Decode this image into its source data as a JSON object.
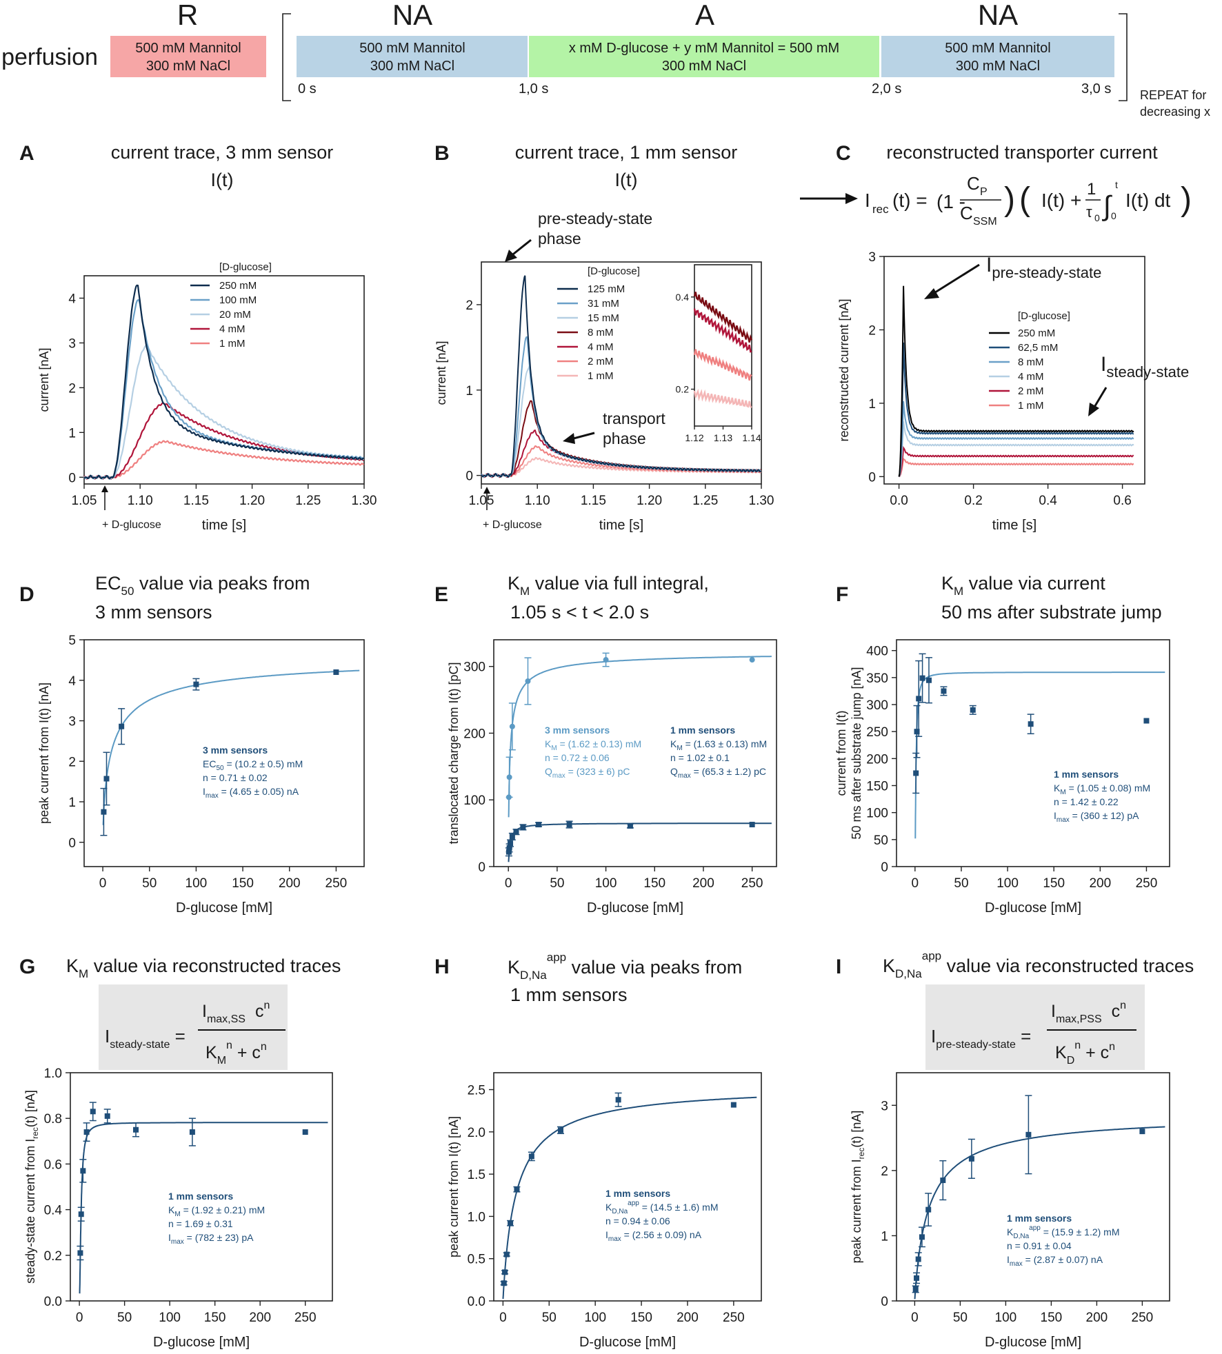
{
  "perfusion": {
    "label": "perfusion",
    "repeat_note": [
      "REPEAT for",
      "decreasing x"
    ],
    "phases": [
      {
        "head": "R",
        "color": "#f6a6a6",
        "lines": [
          "500 mM Mannitol",
          "300 mM NaCl"
        ]
      },
      {
        "head": "NA",
        "color": "#b9d3e5",
        "lines": [
          "500 mM Mannitol",
          "300 mM NaCl"
        ]
      },
      {
        "head": "A",
        "color": "#b4f3a6",
        "lines": [
          "x mM D-glucose + y mM Mannitol = 500 mM",
          "300 mM NaCl"
        ]
      },
      {
        "head": "NA",
        "color": "#b9d3e5",
        "lines": [
          "500 mM Mannitol",
          "300 mM NaCl"
        ]
      }
    ],
    "times": [
      "0 s",
      "1,0 s",
      "2,0 s",
      "3,0 s"
    ]
  },
  "panelA": {
    "letter": "A",
    "title": "current trace, 3 mm sensor",
    "subtitle": "I(t)",
    "marker": "+ D-glucose"
  },
  "panelB": {
    "letter": "B",
    "title": "current trace, 1 mm sensor",
    "subtitle": "I(t)",
    "marker": "+ D-glucose",
    "ann_pre": [
      "pre-steady-state",
      "phase"
    ],
    "ann_trans": [
      "transport",
      "phase"
    ]
  },
  "panelC": {
    "letter": "C",
    "title": "reconstructed transporter current",
    "eq": {
      "i": "I",
      "rec": "rec",
      "t": "(t) =",
      "one_minus": "(1 -",
      "cp": "C",
      "cp_sub": "P",
      "cssm": "C",
      "cssm_sub": "SSM",
      "it": "I(t) +",
      "one": "1",
      "tau": "τ",
      "tau_sub": "0",
      "int_top": "t",
      "int_bot": "0",
      "itdt": "I(t) dt"
    },
    "ann_pss": "pre-steady-state",
    "ann_ss": "steady-state",
    "ann_i": "I"
  },
  "panelD": {
    "letter": "D",
    "title_pre": "EC",
    "title_sub": "50",
    "title_post": " value via peaks from",
    "title2": "3 mm sensors",
    "fit": {
      "head": "3 mm sensors",
      "l1a": "EC",
      "l1s": "50",
      "l1b": " = (10.2 ± 0.5) mM",
      "l2": "n = 0.71 ± 0.02",
      "l3a": "I",
      "l3s": "max",
      "l3b": " = (4.65 ± 0.05) nA"
    }
  },
  "panelE": {
    "letter": "E",
    "title_pre": "K",
    "title_sub": "M",
    "title_post": " value via full integral,",
    "title2": "1.05 s < t < 2.0 s",
    "fit3": {
      "head": "3 mm sensors",
      "l1a": "K",
      "l1s": "M",
      "l1b": " = (1.62 ± 0.13) mM",
      "l2": "n = 0.72 ± 0.06",
      "l3a": "Q",
      "l3s": "max",
      "l3b": " = (323 ± 6) pC"
    },
    "fit1": {
      "head": "1 mm sensors",
      "l1a": "K",
      "l1s": "M",
      "l1b": " = (1.63 ± 0.13) mM",
      "l2": "n = 1.02 ± 0.1",
      "l3a": "Q",
      "l3s": "max",
      "l3b": " = (65.3 ± 1.2) pC"
    }
  },
  "panelF": {
    "letter": "F",
    "title_pre": "K",
    "title_sub": "M",
    "title_post": " value via current",
    "title2": "50 ms after substrate jump",
    "fit": {
      "head": "1 mm sensors",
      "l1a": "K",
      "l1s": "M",
      "l1b": " = (1.05 ± 0.08) mM",
      "l2": "n = 1.42 ± 0.22",
      "l3a": "I",
      "l3s": "max",
      "l3b": " = (360 ± 12) pA"
    }
  },
  "panelG": {
    "letter": "G",
    "title_pre": "K",
    "title_sub": "M",
    "title_post": " value via reconstructed traces",
    "eq": {
      "lhs": "I",
      "lhs_sub": "steady-state",
      "num_i": "I",
      "num_sub": "max,SS",
      "num_c": "c",
      "num_sup": "n",
      "den_k": "K",
      "den_sub": "M",
      "den_sup": "n",
      "den_c": " + c",
      "den_csup": "n"
    },
    "fit": {
      "head": "1 mm sensors",
      "l1a": "K",
      "l1s": "M",
      "l1b": " = (1.92 ± 0.21) mM",
      "l2": "n = 1.69 ± 0.31",
      "l3a": "I",
      "l3s": "max",
      "l3b": " = (782 ± 23) pA"
    }
  },
  "panelH": {
    "letter": "H",
    "title_pre": "K",
    "title_sub": "D,Na",
    "title_sup": "app",
    "title_post": " value via peaks from",
    "title2": "1 mm sensors",
    "fit": {
      "head": "1 mm sensors",
      "l1a": "K",
      "l1s": "D,Na",
      "l1sup": "app",
      "l1b": " = (14.5 ± 1.6) mM",
      "l2": "n = 0.94 ± 0.06",
      "l3a": "I",
      "l3s": "max",
      "l3b": " = (2.56 ± 0.09) nA"
    }
  },
  "panelI": {
    "letter": "I",
    "title_pre": "K",
    "title_sub": "D,Na",
    "title_sup": "app",
    "title_post": " value via reconstructed traces",
    "eq": {
      "lhs": "I",
      "lhs_sub": "pre-steady-state",
      "num_i": "I",
      "num_sub": "max,PSS",
      "num_c": "c",
      "num_sup": "n",
      "den_k": "K",
      "den_sub": "D",
      "den_sup": "n",
      "den_c": " + c",
      "den_csup": "n"
    },
    "fit": {
      "head": "1 mm sensors",
      "l1a": "K",
      "l1s": "D,Na",
      "l1sup": "app",
      "l1b": " = (15.9 ± 1.2) mM",
      "l2": "n = 0.91 ± 0.04",
      "l3a": "I",
      "l3s": "max",
      "l3b": " = (2.87 ± 0.07) nA"
    }
  },
  "chart_data": [
    {
      "id": "A",
      "type": "line",
      "xlabel": "time [s]",
      "ylabel": "current [nA]",
      "xlim": [
        1.05,
        1.3
      ],
      "ylim": [
        -0.15,
        4.5
      ],
      "xticks": [
        "1.05",
        "1.10",
        "1.15",
        "1.20",
        "1.25",
        "1.30"
      ],
      "yticks": [
        "0",
        "1",
        "2",
        "3",
        "4"
      ],
      "legend_title": "[D-glucose]",
      "t0": 1.075,
      "series": [
        {
          "name": "250 mM",
          "color": "#0d2c4d",
          "peak": 4.3,
          "tp": 1.098,
          "tail": 0.22,
          "tau": 0.014,
          "tau2": 0.12,
          "w": 0.011
        },
        {
          "name": "100 mM",
          "color": "#6aa0c8",
          "peak": 3.98,
          "tp": 1.099,
          "tail": 0.26,
          "tau": 0.018,
          "tau2": 0.12,
          "w": 0.012
        },
        {
          "name": "20 mM",
          "color": "#b5cfe3",
          "peak": 2.93,
          "tp": 1.106,
          "tail": 0.28,
          "tau": 0.05,
          "tau2": 0.1,
          "w": 0.015
        },
        {
          "name": "4 mM",
          "color": "#b0153a",
          "peak": 1.65,
          "tp": 1.122,
          "tail": 0.25,
          "tau": 0.07,
          "tau2": 0.1,
          "w": 0.025
        },
        {
          "name": "1 mM",
          "color": "#ef8080",
          "peak": 0.8,
          "tp": 1.123,
          "tail": 0.2,
          "tau": 0.09,
          "tau2": 0.1,
          "w": 0.025
        }
      ]
    },
    {
      "id": "B",
      "type": "line",
      "xlabel": "time [s]",
      "ylabel": "current [nA]",
      "xlim": [
        1.05,
        1.3
      ],
      "ylim": [
        -0.1,
        2.5
      ],
      "xticks": [
        "1.05",
        "1.10",
        "1.15",
        "1.20",
        "1.25",
        "1.30"
      ],
      "yticks": [
        "0",
        "1",
        "2"
      ],
      "legend_title": "[D-glucose]",
      "t0": 1.076,
      "series": [
        {
          "name": "125 mM",
          "color": "#0d2c4d",
          "peak": 2.33,
          "tp": 1.089,
          "plat": 0.42,
          "tail": 0.05
        },
        {
          "name": "31 mM",
          "color": "#6aa0c8",
          "peak": 1.63,
          "tp": 1.091,
          "plat": 0.4,
          "tail": 0.05
        },
        {
          "name": "15 mM",
          "color": "#b5cfe3",
          "peak": 1.27,
          "tp": 1.093,
          "plat": 0.38,
          "tail": 0.05
        },
        {
          "name": "8 mM",
          "color": "#7a0d14",
          "peak": 0.87,
          "tp": 1.095,
          "plat": 0.4,
          "tail": 0.05
        },
        {
          "name": "4 mM",
          "color": "#b0153a",
          "peak": 0.52,
          "tp": 1.098,
          "plat": 0.36,
          "tail": 0.05
        },
        {
          "name": "2 mM",
          "color": "#ef8080",
          "peak": 0.34,
          "tp": 1.1,
          "plat": 0.27,
          "tail": 0.04
        },
        {
          "name": "1 mM",
          "color": "#f4b6b6",
          "peak": 0.2,
          "tp": 1.1,
          "plat": 0.18,
          "tail": 0.04
        }
      ],
      "inset": {
        "xlim": [
          1.12,
          1.14
        ],
        "ylim": [
          0.12,
          0.47
        ],
        "xticks": [
          "1.12",
          "1.13",
          "1.14"
        ],
        "yticks": [
          "0.2",
          "0.4"
        ],
        "series": [
          {
            "name": "8 mM",
            "color": "#7a0d14",
            "start": 0.405,
            "end": 0.305
          },
          {
            "name": "4 mM",
            "color": "#b0153a",
            "start": 0.37,
            "end": 0.285
          },
          {
            "name": "2 mM",
            "color": "#ef8080",
            "start": 0.28,
            "end": 0.225
          },
          {
            "name": "1 mM",
            "color": "#f4b6b6",
            "start": 0.19,
            "end": 0.165
          }
        ]
      }
    },
    {
      "id": "C",
      "type": "line",
      "xlabel": "time [s]",
      "ylabel": "reconstructed current [nA]",
      "xlim": [
        -0.04,
        0.66
      ],
      "ylim": [
        -0.1,
        3.0
      ],
      "xticks": [
        "0.0",
        "0.2",
        "0.4",
        "0.6"
      ],
      "yticks": [
        "0",
        "1",
        "2",
        "3"
      ],
      "legend_title": "[D-glucose]",
      "series": [
        {
          "name": "250 mM",
          "color": "#000000",
          "peak": 2.6,
          "ss": 0.62
        },
        {
          "name": "62,5 mM",
          "color": "#1f4e79",
          "peak": 1.82,
          "ss": 0.59
        },
        {
          "name": "8 mM",
          "color": "#6aa0c8",
          "peak": 1.02,
          "ss": 0.52
        },
        {
          "name": "4 mM",
          "color": "#b5cfe3",
          "peak": 0.75,
          "ss": 0.43
        },
        {
          "name": "2 mM",
          "color": "#b0153a",
          "peak": 0.4,
          "ss": 0.28
        },
        {
          "name": "1 mM",
          "color": "#ef8080",
          "peak": 0.25,
          "ss": 0.17
        }
      ]
    },
    {
      "id": "D",
      "type": "scatter",
      "xlabel": "D-glucose [mM]",
      "ylabel": "peak current from I(t) [nA]",
      "xlim": [
        -20,
        280
      ],
      "ylim": [
        -0.6,
        5.0
      ],
      "xticks": [
        "0",
        "50",
        "100",
        "150",
        "200",
        "250"
      ],
      "yticks": [
        "0",
        "1",
        "2",
        "3",
        "4",
        "5"
      ],
      "fit": {
        "ymax": 4.65,
        "k": 10.2,
        "n": 0.71,
        "color": "#5b9ac4"
      },
      "points": [
        {
          "x": 1,
          "y": 0.75,
          "e": 0.58
        },
        {
          "x": 4,
          "y": 1.57,
          "e": 0.65
        },
        {
          "x": 20,
          "y": 2.86,
          "e": 0.44
        },
        {
          "x": 100,
          "y": 3.9,
          "e": 0.14
        },
        {
          "x": 250,
          "y": 4.2,
          "e": 0
        }
      ],
      "point_color": "#1f4e79"
    },
    {
      "id": "E",
      "type": "scatter",
      "xlabel": "D-glucose [mM]",
      "ylabel": "translocated charge from I(t) [pC]",
      "xlim": [
        -15,
        275
      ],
      "ylim": [
        0,
        340
      ],
      "xticks": [
        "0",
        "50",
        "100",
        "150",
        "200",
        "250"
      ],
      "yticks": [
        "0",
        "100",
        "200",
        "300"
      ],
      "series": [
        {
          "name": "3 mm sensors",
          "color": "#5b9ac4",
          "fit": {
            "ymax": 323,
            "k": 1.62,
            "n": 0.72
          },
          "points": [
            {
              "x": 0.5,
              "y": 104,
              "e": 0
            },
            {
              "x": 1,
              "y": 134,
              "e": 30
            },
            {
              "x": 4,
              "y": 210,
              "e": 35
            },
            {
              "x": 20,
              "y": 278,
              "e": 35
            },
            {
              "x": 100,
              "y": 310,
              "e": 10
            },
            {
              "x": 250,
              "y": 310,
              "e": 0
            }
          ]
        },
        {
          "name": "1 mm sensors",
          "color": "#1f4e79",
          "fit": {
            "ymax": 65.3,
            "k": 1.63,
            "n": 1.02
          },
          "points": [
            {
              "x": 0.5,
              "y": 22,
              "e": 6
            },
            {
              "x": 1,
              "y": 28,
              "e": 6
            },
            {
              "x": 2,
              "y": 35,
              "e": 5
            },
            {
              "x": 4,
              "y": 45,
              "e": 5
            },
            {
              "x": 8,
              "y": 52,
              "e": 4
            },
            {
              "x": 15,
              "y": 59,
              "e": 4
            },
            {
              "x": 31,
              "y": 63,
              "e": 3
            },
            {
              "x": 62.5,
              "y": 63,
              "e": 5
            },
            {
              "x": 125,
              "y": 61,
              "e": 3
            },
            {
              "x": 250,
              "y": 63,
              "e": 0
            }
          ]
        }
      ]
    },
    {
      "id": "F",
      "type": "scatter",
      "xlabel": "D-glucose [mM]",
      "ylabel": "current from I(t) 50 ms after substrate jump [nA]",
      "xlim": [
        -20,
        275
      ],
      "ylim": [
        0,
        420
      ],
      "xticks": [
        "0",
        "50",
        "100",
        "150",
        "200",
        "250"
      ],
      "yticks": [
        "0",
        "50",
        "100",
        "150",
        "200",
        "250",
        "300",
        "350",
        "400"
      ],
      "fit": {
        "ymax": 360,
        "k": 1.05,
        "n": 1.42,
        "color": "#5b9ac4"
      },
      "points": [
        {
          "x": 1,
          "y": 173,
          "e": 37
        },
        {
          "x": 2,
          "y": 250,
          "e": 48
        },
        {
          "x": 4,
          "y": 311,
          "e": 70
        },
        {
          "x": 8,
          "y": 349,
          "e": 45
        },
        {
          "x": 15,
          "y": 345,
          "e": 42
        },
        {
          "x": 31,
          "y": 325,
          "e": 8
        },
        {
          "x": 62.5,
          "y": 290,
          "e": 8
        },
        {
          "x": 125,
          "y": 264,
          "e": 18
        },
        {
          "x": 250,
          "y": 270,
          "e": 0
        }
      ],
      "point_color": "#1f4e79"
    },
    {
      "id": "G",
      "type": "scatter",
      "xlabel": "D-glucose [mM]",
      "ylabel": "steady-state current from Irec(t) [nA]",
      "xlim": [
        -10,
        280
      ],
      "ylim": [
        0,
        1.0
      ],
      "xticks": [
        "0",
        "50",
        "100",
        "150",
        "200",
        "250"
      ],
      "yticks": [
        "0.0",
        "0.2",
        "0.4",
        "0.6",
        "0.8",
        "1.0"
      ],
      "fit": {
        "ymax": 0.782,
        "k": 1.92,
        "n": 1.69,
        "color": "#1f4e79"
      },
      "points": [
        {
          "x": 1,
          "y": 0.21,
          "e": 0.03
        },
        {
          "x": 2,
          "y": 0.38,
          "e": 0.03
        },
        {
          "x": 4,
          "y": 0.57,
          "e": 0.05
        },
        {
          "x": 8,
          "y": 0.74,
          "e": 0.04
        },
        {
          "x": 15,
          "y": 0.83,
          "e": 0.04
        },
        {
          "x": 31,
          "y": 0.81,
          "e": 0.03
        },
        {
          "x": 62.5,
          "y": 0.75,
          "e": 0.03
        },
        {
          "x": 125,
          "y": 0.74,
          "e": 0.06
        },
        {
          "x": 250,
          "y": 0.74,
          "e": 0
        }
      ],
      "point_color": "#1f4e79"
    },
    {
      "id": "H",
      "type": "scatter",
      "xlabel": "D-glucose [mM]",
      "ylabel": "peak current from I(t) [nA]",
      "xlim": [
        -10,
        280
      ],
      "ylim": [
        0,
        2.7
      ],
      "xticks": [
        "0",
        "50",
        "100",
        "150",
        "200",
        "250"
      ],
      "yticks": [
        "0.0",
        "0.5",
        "1.0",
        "1.5",
        "2.0",
        "2.5"
      ],
      "fit": {
        "ymax": 2.56,
        "k": 14.5,
        "n": 0.94,
        "color": "#1f4e79"
      },
      "points": [
        {
          "x": 1,
          "y": 0.21,
          "e": 0.02
        },
        {
          "x": 2,
          "y": 0.34,
          "e": 0.02
        },
        {
          "x": 4,
          "y": 0.55,
          "e": 0.02
        },
        {
          "x": 8,
          "y": 0.92,
          "e": 0.03
        },
        {
          "x": 15,
          "y": 1.32,
          "e": 0.03
        },
        {
          "x": 31,
          "y": 1.71,
          "e": 0.05
        },
        {
          "x": 62.5,
          "y": 2.02,
          "e": 0.04
        },
        {
          "x": 125,
          "y": 2.38,
          "e": 0.08
        },
        {
          "x": 250,
          "y": 2.32,
          "e": 0
        }
      ],
      "point_color": "#1f4e79"
    },
    {
      "id": "I",
      "type": "scatter",
      "xlabel": "D-glucose [mM]",
      "ylabel": "peak current from Irec(t) [nA]",
      "xlim": [
        -20,
        280
      ],
      "ylim": [
        0,
        3.5
      ],
      "xticks": [
        "0",
        "50",
        "100",
        "150",
        "200",
        "250"
      ],
      "yticks": [
        "0",
        "1",
        "2",
        "3"
      ],
      "fit": {
        "ymax": 2.87,
        "k": 15.9,
        "n": 0.91,
        "color": "#1f4e79"
      },
      "points": [
        {
          "x": 1,
          "y": 0.18,
          "e": 0.05
        },
        {
          "x": 2,
          "y": 0.35,
          "e": 0.08
        },
        {
          "x": 4,
          "y": 0.64,
          "e": 0.1
        },
        {
          "x": 8,
          "y": 0.98,
          "e": 0.15
        },
        {
          "x": 15,
          "y": 1.4,
          "e": 0.25
        },
        {
          "x": 31,
          "y": 1.85,
          "e": 0.3
        },
        {
          "x": 62.5,
          "y": 2.18,
          "e": 0.3
        },
        {
          "x": 125,
          "y": 2.55,
          "e": 0.6
        },
        {
          "x": 250,
          "y": 2.6,
          "e": 0
        }
      ],
      "point_color": "#1f4e79"
    }
  ]
}
